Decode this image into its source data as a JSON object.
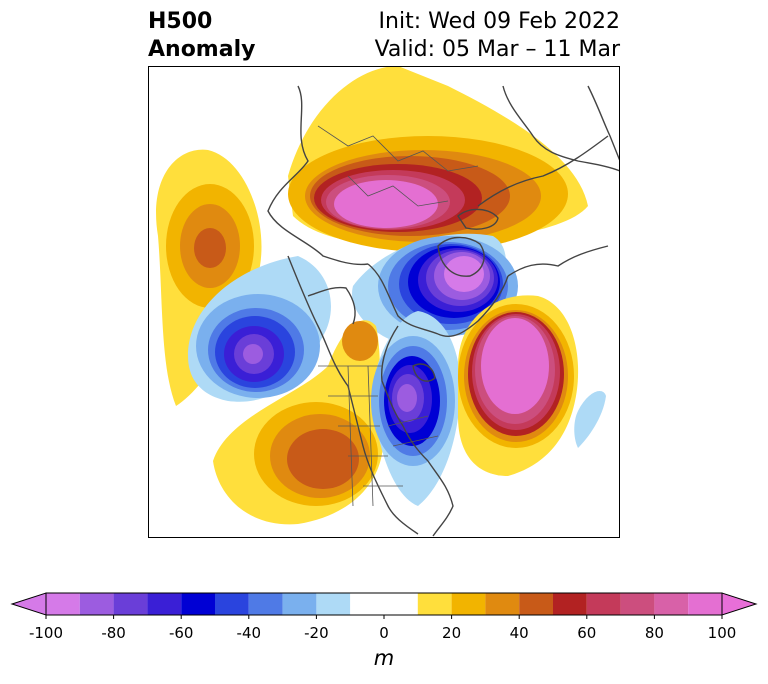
{
  "title": {
    "field": "H500",
    "subfield": "Anomaly",
    "init": "Init: Wed 09 Feb 2022",
    "valid": "Valid: 05 Mar – 11 Mar"
  },
  "colorbar": {
    "unit": "m",
    "ticks": [
      "-100",
      "-80",
      "-60",
      "-40",
      "-20",
      "0",
      "20",
      "40",
      "60",
      "80",
      "100"
    ],
    "levels": [
      -100,
      -90,
      -80,
      -70,
      -60,
      -50,
      -40,
      -30,
      -20,
      -10,
      10,
      20,
      30,
      40,
      50,
      60,
      70,
      80,
      90,
      100
    ],
    "colors": [
      "#d57ae8",
      "#9c5ce0",
      "#6a3ed8",
      "#3a1fd6",
      "#0000d4",
      "#2a44de",
      "#4f7ae6",
      "#7ab0ee",
      "#aedaf6",
      "#ffffff",
      "#ffdf3c",
      "#f2b400",
      "#e08a10",
      "#c85a18",
      "#b22222",
      "#c43a5a",
      "#cc4e7e",
      "#d861a8",
      "#e46fd2"
    ],
    "extend_low_color": "#d57ae8",
    "extend_high_color": "#e86fd8"
  },
  "anomaly_centers": [
    {
      "region": "north-pacific",
      "sign": "positive",
      "peak_m": 50
    },
    {
      "region": "siberia-arctic",
      "sign": "positive",
      "peak_m": 100
    },
    {
      "region": "northeast-pacific",
      "sign": "negative",
      "peak_m": -100
    },
    {
      "region": "canadian-arctic",
      "sign": "negative",
      "peak_m": -100
    },
    {
      "region": "western-united-states",
      "sign": "positive",
      "peak_m": 50
    },
    {
      "region": "eastern-north-america",
      "sign": "negative",
      "peak_m": -100
    },
    {
      "region": "north-atlantic",
      "sign": "positive",
      "peak_m": 100
    }
  ]
}
